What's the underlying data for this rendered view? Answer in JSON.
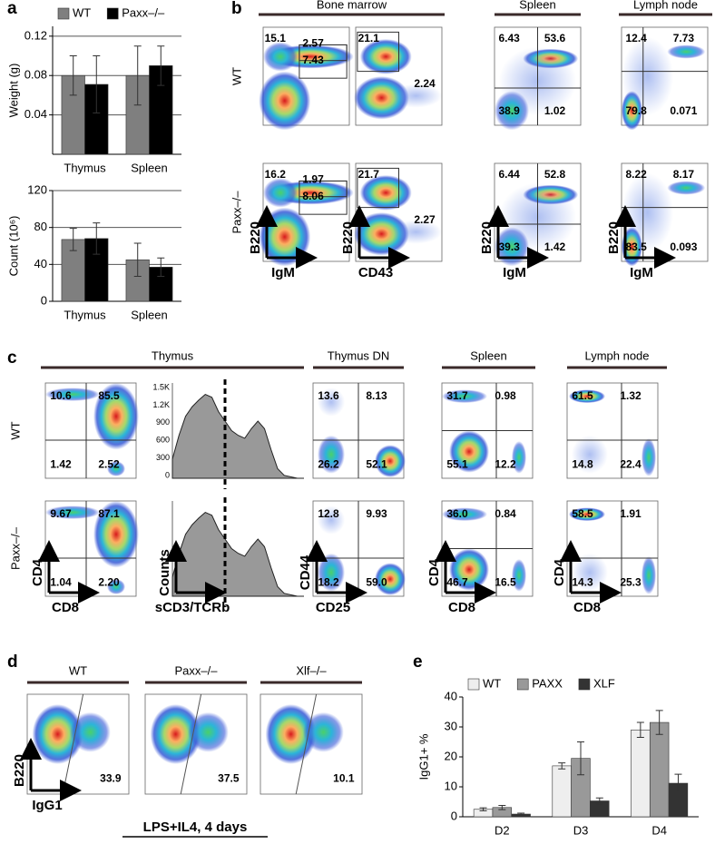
{
  "panel_labels": [
    "a",
    "b",
    "c",
    "d",
    "e"
  ],
  "chart_data": [
    {
      "type": "bar",
      "y_label": "Weight (g)",
      "categories": [
        "Thymus",
        "Spleen"
      ],
      "series": [
        {
          "name": "WT",
          "color": "#7f7f7f",
          "values": [
            0.08,
            0.08
          ],
          "errors": [
            0.02,
            0.03
          ]
        },
        {
          "name": "Paxx–/–",
          "color": "#000000",
          "values": [
            0.071,
            0.09
          ],
          "errors": [
            0.029,
            0.02
          ]
        }
      ],
      "ylim": [
        0,
        0.13
      ],
      "yticks": [
        0.04,
        0.08,
        0.12
      ],
      "grid": true,
      "legend": "top"
    },
    {
      "type": "bar",
      "y_label": "Count (10⁶)",
      "categories": [
        "Thymus",
        "Spleen"
      ],
      "series": [
        {
          "color": "#7f7f7f",
          "values": [
            67,
            45
          ],
          "errors": [
            12,
            18
          ]
        },
        {
          "color": "#000000",
          "values": [
            68,
            37
          ],
          "errors": [
            17,
            10
          ]
        }
      ],
      "ylim": [
        0,
        120
      ],
      "yticks": [
        0,
        40,
        80,
        120
      ],
      "grid": true
    },
    {
      "type": "bar",
      "y_label": "IgG1+ %",
      "categories": [
        "D2",
        "D3",
        "D4"
      ],
      "series": [
        {
          "name": "WT",
          "color": "#eeeeee",
          "values": [
            2.5,
            17,
            29
          ],
          "errors": [
            0.5,
            1,
            2.5
          ]
        },
        {
          "name": "PAXX",
          "color": "#999999",
          "values": [
            3.1,
            19.5,
            31.5
          ],
          "errors": [
            0.7,
            5.5,
            4
          ]
        },
        {
          "name": "XLF",
          "color": "#333333",
          "values": [
            0.9,
            5.3,
            11.2
          ],
          "errors": [
            0.3,
            1,
            3
          ]
        }
      ],
      "ylim": [
        0,
        40
      ],
      "yticks": [
        0,
        10,
        20,
        30,
        40
      ],
      "grid": false,
      "legend": "top"
    }
  ],
  "panel_b": {
    "headers": [
      "Bone marrow",
      "Spleen",
      "Lymph node"
    ],
    "rows": [
      "WT",
      "Paxx–/–"
    ],
    "plots": [
      [
        [
          "15.1",
          "2.57",
          "7.43"
        ],
        [
          "21.1",
          "2.24"
        ],
        [
          "6.43",
          "53.6",
          "38.9",
          "1.02"
        ],
        [
          "12.4",
          "7.73",
          "79.8",
          "0.071"
        ]
      ],
      [
        [
          "16.2",
          "1.97",
          "8.06"
        ],
        [
          "21.7",
          "2.27"
        ],
        [
          "6.44",
          "52.8",
          "39.3",
          "1.42"
        ],
        [
          "8.22",
          "8.17",
          "83.5",
          "0.093"
        ]
      ]
    ],
    "y_label": "B220",
    "x_labels": [
      "IgM",
      "CD43",
      "IgM",
      "IgM"
    ]
  },
  "panel_c": {
    "headers": [
      "Thymus",
      "Thymus DN",
      "Spleen",
      "Lymph node"
    ],
    "rows": [
      "WT",
      "Paxx–/–"
    ],
    "plots": [
      [
        [
          "10.6",
          "85.5",
          "1.42",
          "2.52"
        ],
        [
          "13.6",
          "8.13",
          "26.2",
          "52.1"
        ],
        [
          "31.7",
          "0.98",
          "55.1",
          "12.2"
        ],
        [
          "61.5",
          "1.32",
          "14.8",
          "22.4"
        ]
      ],
      [
        [
          "9.67",
          "87.1",
          "1.04",
          "2.20"
        ],
        [
          "12.8",
          "9.93",
          "18.2",
          "59.0"
        ],
        [
          "36.0",
          "0.84",
          "46.7",
          "16.5"
        ],
        [
          "58.5",
          "1.91",
          "14.3",
          "25.3"
        ]
      ]
    ],
    "histogram_ticks": [
      "1.5K",
      "1.2K",
      "900",
      "600",
      "300",
      "0"
    ],
    "x_labels": [
      "CD8",
      "sCD3/TCRb",
      "CD25",
      "CD8",
      "CD8"
    ],
    "y_labels": [
      "CD4",
      "Counts",
      "CD44",
      "CD4",
      "CD4"
    ]
  },
  "panel_d": {
    "headers": [
      "WT",
      "Paxx–/–",
      "Xlf–/–"
    ],
    "values": [
      "33.9",
      "37.5",
      "10.1"
    ],
    "y_label": "B220",
    "x_label": "IgG1",
    "caption": "LPS+IL4, 4 days"
  }
}
